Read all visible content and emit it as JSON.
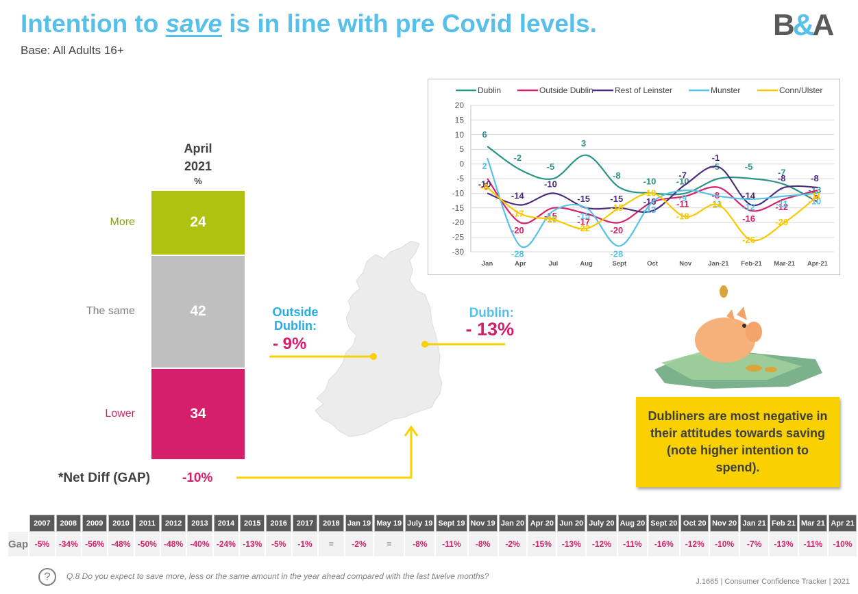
{
  "header": {
    "title_pre": "Intention to ",
    "title_em": "save",
    "title_post": " is in line with pre Covid levels.",
    "subtitle": "Base: All Adults 16+",
    "logo_left": "B",
    "logo_amp": "&",
    "logo_right": "A"
  },
  "stacked_bar": {
    "header_line1": "April",
    "header_line2": "2021",
    "unit": "%",
    "segments": [
      {
        "label": "More",
        "value": 24,
        "color": "#afc20f",
        "label_color": "#8a9a0c"
      },
      {
        "label": "The same",
        "value": 42,
        "color": "#bfbfbf",
        "label_color": "#7f7f7f"
      },
      {
        "label": "Lower",
        "value": 34,
        "color": "#d51f6a",
        "label_color": "#d51f6a"
      }
    ],
    "net_diff_label": "*Net Diff (GAP)",
    "net_diff_value": "-10%"
  },
  "map": {
    "outside_label": "Outside Dublin:",
    "outside_line1": "Outside",
    "outside_line2": "Dublin:",
    "outside_value": "- 9%",
    "dublin_label": "Dublin:",
    "dublin_value": "- 13%",
    "connector_color": "#f9d100"
  },
  "callout": {
    "text": "Dubliners are most negative in their attitudes towards saving (note higher intention to spend)."
  },
  "chart_data": {
    "type": "line",
    "title": "",
    "xlabel": "",
    "ylabel": "",
    "categories": [
      "Jan",
      "Apr",
      "Jul",
      "Aug",
      "Sept",
      "Oct",
      "Nov",
      "Jan-21",
      "Feb-21",
      "Mar-21",
      "Apr-21"
    ],
    "ylim": [
      -30,
      20
    ],
    "yticks": [
      20,
      15,
      10,
      5,
      0,
      -5,
      -10,
      -15,
      -20,
      -25,
      -30
    ],
    "grid": true,
    "legend_position": "top",
    "series": [
      {
        "name": "Dublin",
        "color": "#2a9486",
        "values": [
          6,
          -2,
          -5,
          3,
          -8,
          -10,
          -10,
          -5,
          -5,
          -7,
          -13
        ]
      },
      {
        "name": "Outside Dublin",
        "color": "#d51f6a",
        "values": [
          -5,
          -20,
          -15,
          -17,
          -20,
          -13,
          -11,
          -8,
          -16,
          -12,
          -9
        ]
      },
      {
        "name": "Rest of Leinster",
        "color": "#4b2c7c",
        "values": [
          -10,
          -14,
          -10,
          -15,
          -15,
          -16,
          -7,
          -1,
          -14,
          -8,
          -8
        ]
      },
      {
        "name": "Munster",
        "color": "#57c0e8",
        "values": [
          2,
          -28,
          -16,
          -15,
          -28,
          -13,
          -9,
          -11,
          -12,
          -11,
          -10
        ]
      },
      {
        "name": "Conn/Ulster",
        "color": "#f9c800",
        "values": [
          -8,
          -17,
          -19,
          -22,
          -15,
          -10,
          -18,
          -14,
          -26,
          -20,
          -11
        ]
      }
    ]
  },
  "gap_table": {
    "row_label": "Gap",
    "columns": [
      "2007",
      "2008",
      "2009",
      "2010",
      "2011",
      "2012",
      "2013",
      "2014",
      "2015",
      "2016",
      "2017",
      "2018",
      "Jan 19",
      "May 19",
      "July 19",
      "Sept 19",
      "Nov 19",
      "Jan 20",
      "Apr 20",
      "Jun 20",
      "July 20",
      "Aug 20",
      "Sept 20",
      "Oct 20",
      "Nov 20",
      "Jan 21",
      "Feb 21",
      "Mar 21",
      "Apr 21"
    ],
    "values": [
      "-5%",
      "-34%",
      "-56%",
      "-48%",
      "-50%",
      "-48%",
      "-40%",
      "-24%",
      "-13%",
      "-5%",
      "-1%",
      "=",
      "-2%",
      "=",
      "-8%",
      "-11%",
      "-8%",
      "-2%",
      "-15%",
      "-13%",
      "-12%",
      "-11%",
      "-16%",
      "-12%",
      "-10%",
      "-7%",
      "-13%",
      "-11%",
      "-10%"
    ]
  },
  "footer": {
    "question_icon": "?",
    "question": "Q.8 Do you expect to save more, less or the same amount in the year ahead compared with the last twelve months?",
    "source": "J.1665 | Consumer Confidence Tracker | 2021"
  }
}
